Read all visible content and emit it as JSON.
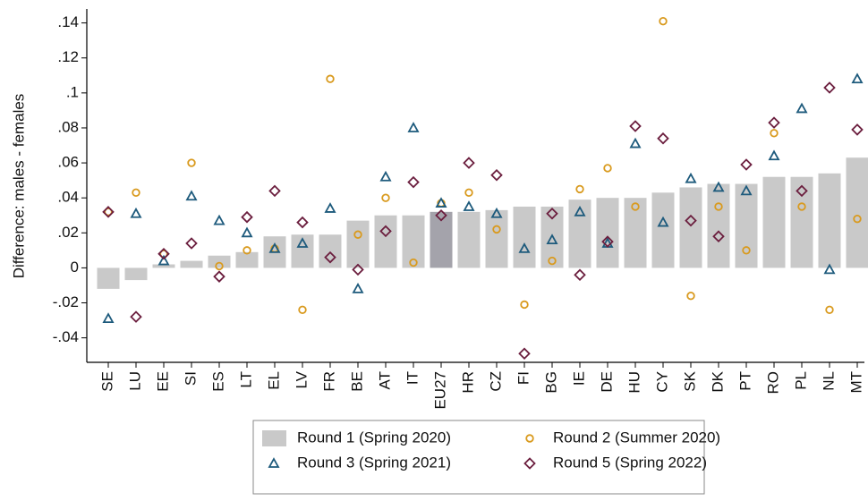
{
  "chart_data": {
    "type": "bar",
    "y_label": "Difference: males - females",
    "categories": [
      "SE",
      "LU",
      "EE",
      "SI",
      "ES",
      "LT",
      "EL",
      "LV",
      "FR",
      "BE",
      "AT",
      "IT",
      "EU27",
      "HR",
      "CZ",
      "FI",
      "BG",
      "IE",
      "DE",
      "HU",
      "CY",
      "SK",
      "DK",
      "PT",
      "RO",
      "PL",
      "NL",
      "MT"
    ],
    "ylim": [
      -0.054,
      0.148
    ],
    "yticks": [
      {
        "value": -0.04,
        "label": "-.04"
      },
      {
        "value": -0.02,
        "label": "-.02"
      },
      0,
      {
        "value": 0.02,
        "label": ".02"
      },
      {
        "value": 0.04,
        "label": ".04"
      },
      {
        "value": 0.06,
        "label": ".06"
      },
      {
        "value": 0.08,
        "label": ".08"
      },
      {
        "value": 0.1,
        "label": ".1"
      },
      {
        "value": 0.12,
        "label": ".12"
      },
      {
        "value": 0.14,
        "label": ".14"
      }
    ],
    "highlight_category": "EU27",
    "highlight_color": "#a4a3ab",
    "series": [
      {
        "name": "Round 1 (Spring 2020)",
        "type": "bar",
        "color": "#c9c9c9",
        "values": [
          -0.012,
          -0.007,
          0.002,
          0.004,
          0.007,
          0.009,
          0.018,
          0.019,
          0.019,
          0.027,
          0.03,
          0.03,
          0.032,
          0.032,
          0.033,
          0.035,
          0.035,
          0.039,
          0.04,
          0.04,
          0.043,
          0.046,
          0.048,
          0.048,
          0.052,
          0.052,
          0.054,
          0.063
        ]
      },
      {
        "name": "Round 2 (Summer 2020)",
        "type": "scatter",
        "marker": "circle",
        "color": "#d99a1e",
        "values": [
          0.032,
          0.043,
          0.008,
          0.06,
          0.001,
          0.01,
          0.011,
          -0.024,
          0.108,
          0.019,
          0.04,
          0.003,
          0.037,
          0.043,
          0.022,
          -0.021,
          0.004,
          0.045,
          0.057,
          0.035,
          0.141,
          -0.016,
          0.035,
          0.01,
          0.077,
          0.035,
          -0.024,
          0.028
        ]
      },
      {
        "name": "Round 3 (Spring 2021)",
        "type": "scatter",
        "marker": "triangle",
        "color": "#1d5a7c",
        "values": [
          -0.029,
          0.031,
          0.004,
          0.041,
          0.027,
          0.02,
          0.011,
          0.014,
          0.034,
          -0.012,
          0.052,
          0.08,
          0.037,
          0.035,
          0.031,
          0.011,
          0.016,
          0.032,
          0.014,
          0.071,
          0.026,
          0.051,
          0.046,
          0.044,
          0.064,
          0.091,
          -0.001,
          0.108
        ]
      },
      {
        "name": "Round 5 (Spring 2022)",
        "type": "scatter",
        "marker": "diamond",
        "color": "#6b1e3e",
        "values": [
          0.032,
          -0.028,
          0.008,
          0.014,
          -0.005,
          0.029,
          0.044,
          0.026,
          0.006,
          -0.001,
          0.021,
          0.049,
          0.03,
          0.06,
          0.053,
          -0.049,
          0.031,
          -0.004,
          0.015,
          0.081,
          0.074,
          0.027,
          0.018,
          0.059,
          0.083,
          0.044,
          0.103,
          0.079
        ]
      }
    ]
  }
}
